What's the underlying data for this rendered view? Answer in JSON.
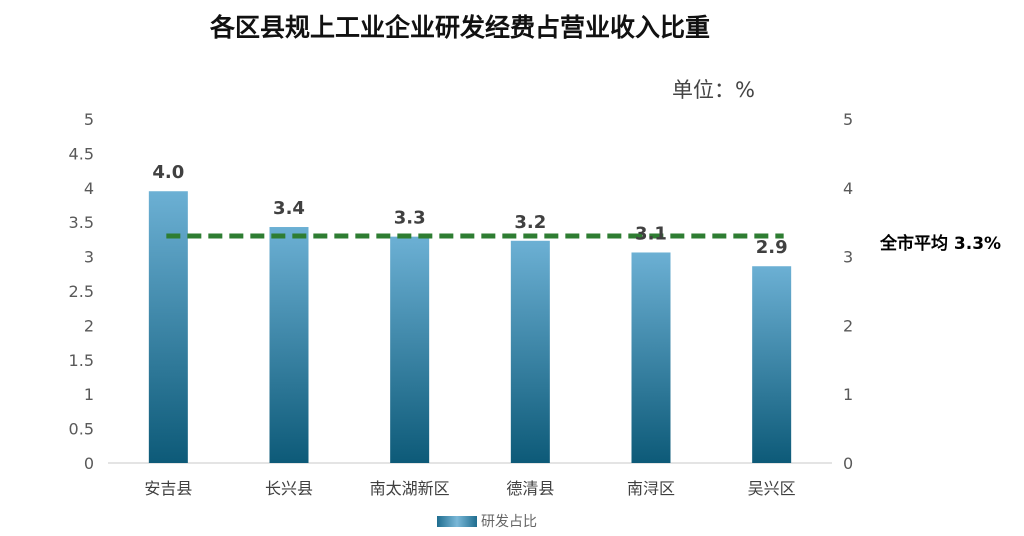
{
  "chart_data": {
    "type": "bar",
    "title": "各区县规上工业企业研发经费占营业收入比重",
    "unit_label": "单位：%",
    "categories": [
      "安吉县",
      "长兴县",
      "南太湖新区",
      "德清县",
      "南浔区",
      "吴兴区"
    ],
    "series": [
      {
        "name": "研发占比",
        "values": [
          3.95,
          3.43,
          3.29,
          3.23,
          3.06,
          2.86
        ]
      }
    ],
    "data_labels": [
      "4.0",
      "3.4",
      "3.3",
      "3.2",
      "3.1",
      "2.9"
    ],
    "left_axis_ticks": [
      "0",
      "0.5",
      "1",
      "1.5",
      "2",
      "2.5",
      "3",
      "3.5",
      "4",
      "4.5",
      "5"
    ],
    "right_axis_ticks": [
      "0",
      "1",
      "2",
      "3",
      "4",
      "5"
    ],
    "ylim": [
      0,
      5
    ],
    "reference_line": {
      "value": 3.3,
      "label": "全市平均 3.3%",
      "color": "#2e7d32"
    },
    "bar_color_top": "#6cb0d4",
    "bar_color_bottom": "#0d5a78",
    "grid": false,
    "legend_position": "bottom"
  }
}
